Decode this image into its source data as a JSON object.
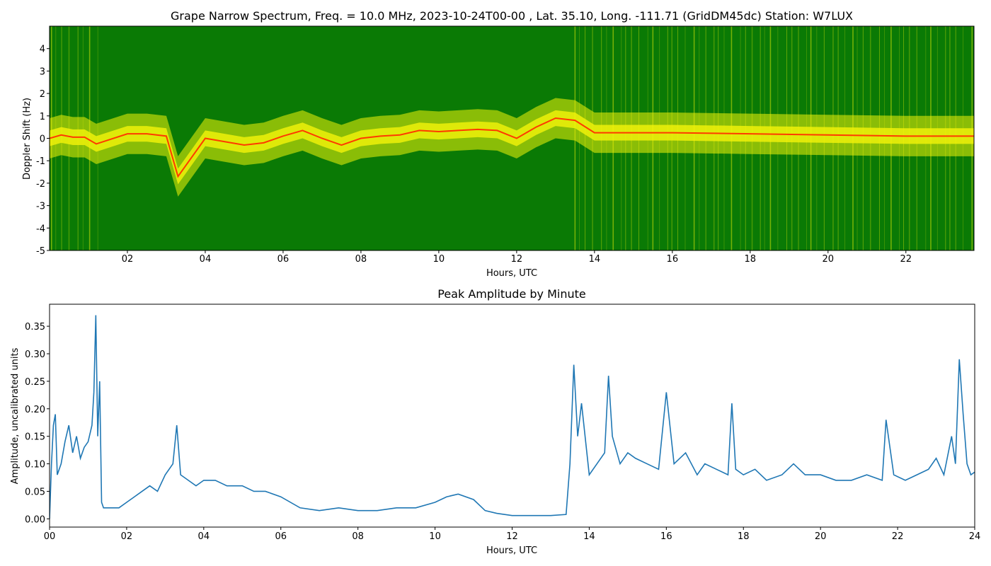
{
  "chart_data": [
    {
      "type": "heatmap",
      "title": "Grape Narrow Spectrum, Freq. = 10.0 MHz, 2023-10-24T00-00 , Lat.  35.10, Long. -111.71 (GridDM45dc) Station: W7LUX",
      "xlabel": "Hours, UTC",
      "ylabel": "Doppler Shift (Hz)",
      "xlim": [
        0,
        23.75
      ],
      "ylim": [
        -5,
        5
      ],
      "xticks": [
        2,
        4,
        6,
        8,
        10,
        12,
        14,
        16,
        18,
        20,
        22
      ],
      "xtick_labels": [
        "02",
        "04",
        "06",
        "08",
        "10",
        "12",
        "14",
        "16",
        "18",
        "20",
        "22"
      ],
      "yticks": [
        -5,
        -4,
        -3,
        -2,
        -1,
        0,
        1,
        2,
        3,
        4
      ],
      "ytick_labels": [
        "-5",
        "-4",
        "-3",
        "-2",
        "-1",
        "0",
        "1",
        "2",
        "3",
        "4"
      ],
      "colors": {
        "background": "#0a7a05",
        "signal": "#f4f40a",
        "peak": "#ff3a00"
      },
      "peak_trace": {
        "hours": [
          0.0,
          0.3,
          0.6,
          0.9,
          1.2,
          2.0,
          2.5,
          3.0,
          3.3,
          4.0,
          5.0,
          5.5,
          6.0,
          6.5,
          7.0,
          7.5,
          8.0,
          8.5,
          9.0,
          9.5,
          10.0,
          10.5,
          11.0,
          11.5,
          12.0,
          12.5,
          13.0,
          13.5,
          14.0,
          15.0,
          16.0,
          18.0,
          20.0,
          22.0,
          23.75
        ],
        "doppler_hz": [
          0.0,
          0.15,
          0.05,
          0.05,
          -0.25,
          0.2,
          0.2,
          0.1,
          -1.7,
          0.0,
          -0.3,
          -0.2,
          0.1,
          0.35,
          0.0,
          -0.3,
          0.0,
          0.1,
          0.15,
          0.35,
          0.3,
          0.35,
          0.4,
          0.35,
          0.0,
          0.5,
          0.9,
          0.8,
          0.25,
          0.25,
          0.25,
          0.2,
          0.15,
          0.1,
          0.1
        ]
      }
    },
    {
      "type": "line",
      "title": "Peak Amplitude by Minute",
      "xlabel": "Hours, UTC",
      "ylabel": "Amplitude, uncalibrated units",
      "xlim": [
        0,
        24
      ],
      "ylim": [
        -0.015,
        0.39
      ],
      "xticks": [
        0,
        2,
        4,
        6,
        8,
        10,
        12,
        14,
        16,
        18,
        20,
        22,
        24
      ],
      "xtick_labels": [
        "00",
        "02",
        "04",
        "06",
        "08",
        "10",
        "12",
        "14",
        "16",
        "18",
        "20",
        "22",
        "24"
      ],
      "yticks": [
        0.0,
        0.05,
        0.1,
        0.15,
        0.2,
        0.25,
        0.3,
        0.35
      ],
      "ytick_labels": [
        "0.00",
        "0.05",
        "0.10",
        "0.15",
        "0.20",
        "0.25",
        "0.30",
        "0.35"
      ],
      "color": "#1f77b4",
      "x": [
        0.0,
        0.05,
        0.1,
        0.15,
        0.2,
        0.3,
        0.4,
        0.5,
        0.6,
        0.7,
        0.8,
        0.9,
        1.0,
        1.1,
        1.15,
        1.2,
        1.25,
        1.3,
        1.35,
        1.4,
        1.6,
        1.8,
        2.0,
        2.2,
        2.4,
        2.6,
        2.8,
        3.0,
        3.2,
        3.3,
        3.4,
        3.6,
        3.8,
        4.0,
        4.3,
        4.6,
        5.0,
        5.3,
        5.6,
        6.0,
        6.5,
        7.0,
        7.5,
        8.0,
        8.5,
        9.0,
        9.5,
        10.0,
        10.3,
        10.6,
        11.0,
        11.3,
        11.6,
        12.0,
        12.5,
        13.0,
        13.4,
        13.5,
        13.6,
        13.7,
        13.8,
        14.0,
        14.2,
        14.4,
        14.5,
        14.6,
        14.8,
        15.0,
        15.2,
        15.5,
        15.8,
        16.0,
        16.2,
        16.5,
        16.8,
        17.0,
        17.3,
        17.6,
        17.7,
        17.8,
        18.0,
        18.3,
        18.6,
        19.0,
        19.3,
        19.6,
        20.0,
        20.4,
        20.8,
        21.2,
        21.6,
        21.7,
        21.9,
        22.2,
        22.5,
        22.8,
        23.0,
        23.2,
        23.4,
        23.5,
        23.6,
        23.7,
        23.8,
        23.9,
        24.0
      ],
      "values": [
        0.0,
        0.1,
        0.17,
        0.19,
        0.08,
        0.1,
        0.14,
        0.17,
        0.12,
        0.15,
        0.11,
        0.13,
        0.14,
        0.17,
        0.23,
        0.37,
        0.15,
        0.25,
        0.03,
        0.02,
        0.02,
        0.02,
        0.03,
        0.04,
        0.05,
        0.06,
        0.05,
        0.08,
        0.1,
        0.17,
        0.08,
        0.07,
        0.06,
        0.07,
        0.07,
        0.06,
        0.06,
        0.05,
        0.05,
        0.04,
        0.02,
        0.015,
        0.02,
        0.015,
        0.015,
        0.02,
        0.02,
        0.03,
        0.04,
        0.045,
        0.035,
        0.015,
        0.01,
        0.006,
        0.006,
        0.006,
        0.008,
        0.1,
        0.28,
        0.15,
        0.21,
        0.08,
        0.1,
        0.12,
        0.26,
        0.15,
        0.1,
        0.12,
        0.11,
        0.1,
        0.09,
        0.23,
        0.1,
        0.12,
        0.08,
        0.1,
        0.09,
        0.08,
        0.21,
        0.09,
        0.08,
        0.09,
        0.07,
        0.08,
        0.1,
        0.08,
        0.08,
        0.07,
        0.07,
        0.08,
        0.07,
        0.18,
        0.08,
        0.07,
        0.08,
        0.09,
        0.11,
        0.08,
        0.15,
        0.1,
        0.29,
        0.19,
        0.1,
        0.08,
        0.085
      ]
    }
  ]
}
